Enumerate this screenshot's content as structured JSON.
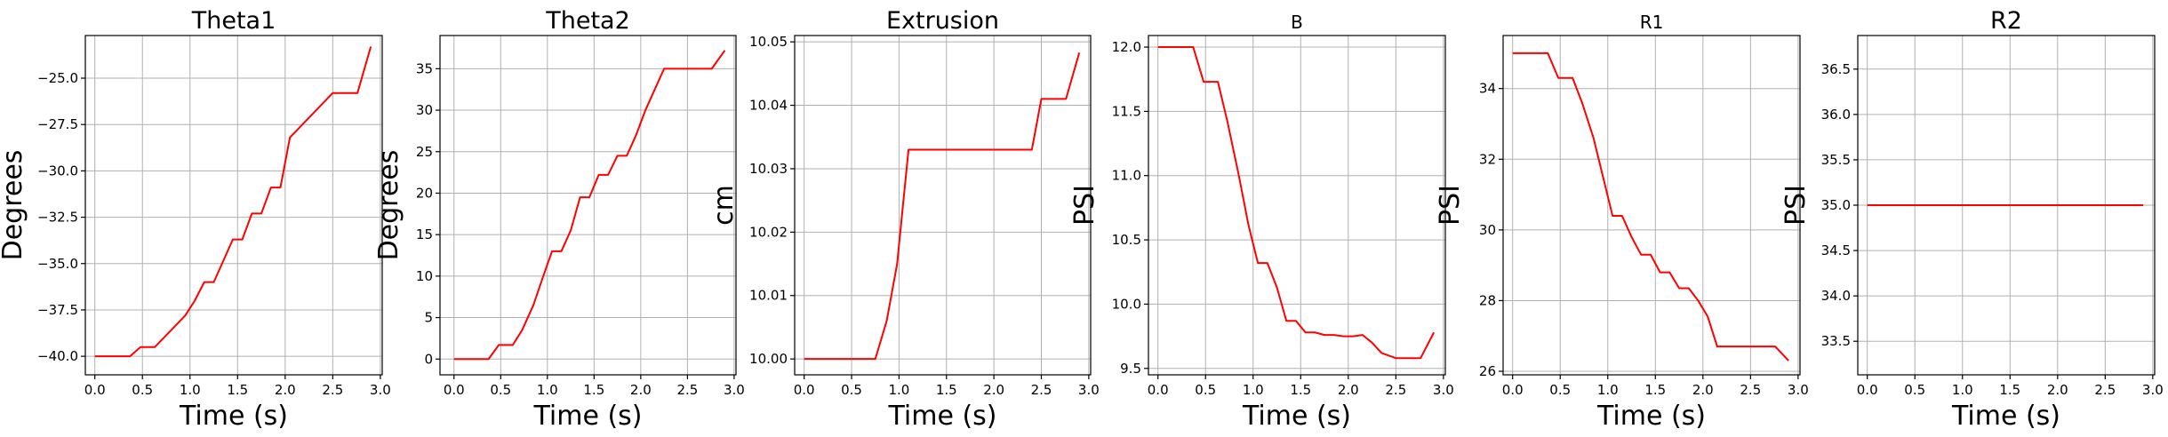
{
  "chart_data": [
    {
      "type": "line",
      "title": "Theta1",
      "xlabel": "Time (s)",
      "ylabel": "Degrees",
      "xlim": [
        -0.1,
        3.02
      ],
      "ylim": [
        -41.0,
        -22.7
      ],
      "xticks": [
        0.0,
        0.5,
        1.0,
        1.5,
        2.0,
        2.5,
        3.0
      ],
      "xtick_labels": [
        "0.0",
        "0.5",
        "1.0",
        "1.5",
        "2.0",
        "2.5",
        "3.0"
      ],
      "yticks": [
        -40.0,
        -37.5,
        -35.0,
        -32.5,
        -30.0,
        -27.5,
        -25.0
      ],
      "ytick_labels": [
        "−40.0",
        "−37.5",
        "−35.0",
        "−32.5",
        "−30.0",
        "−27.5",
        "−25.0"
      ],
      "grid": true,
      "series": [
        {
          "color": "#ff0000",
          "x": [
            0.0,
            0.37,
            0.48,
            0.63,
            0.8,
            0.95,
            1.05,
            1.15,
            1.25,
            1.45,
            1.55,
            1.65,
            1.75,
            1.85,
            1.95,
            2.05,
            2.5,
            2.76,
            2.9
          ],
          "y": [
            -40.0,
            -40.0,
            -39.5,
            -39.5,
            -38.6,
            -37.8,
            -37.0,
            -36.0,
            -36.0,
            -33.7,
            -33.7,
            -32.3,
            -32.3,
            -30.9,
            -30.9,
            -28.2,
            -25.8,
            -25.8,
            -23.3
          ]
        }
      ]
    },
    {
      "type": "line",
      "title": "Theta2",
      "xlabel": "Time (s)",
      "ylabel": "Degrees",
      "xlim": [
        -0.15,
        3.02
      ],
      "ylim": [
        -1.9,
        39.0
      ],
      "xticks": [
        0.0,
        0.5,
        1.0,
        1.5,
        2.0,
        2.5,
        3.0
      ],
      "xtick_labels": [
        "0.0",
        "0.5",
        "1.0",
        "1.5",
        "2.0",
        "2.5",
        "3.0"
      ],
      "yticks": [
        0,
        5,
        10,
        15,
        20,
        25,
        30,
        35
      ],
      "ytick_labels": [
        "0",
        "5",
        "10",
        "15",
        "20",
        "25",
        "30",
        "35"
      ],
      "grid": true,
      "series": [
        {
          "color": "#ff0000",
          "x": [
            0.0,
            0.37,
            0.48,
            0.63,
            0.73,
            0.85,
            0.95,
            1.05,
            1.15,
            1.25,
            1.35,
            1.45,
            1.55,
            1.65,
            1.75,
            1.85,
            1.95,
            2.05,
            2.15,
            2.25,
            2.35,
            2.5,
            2.76,
            2.9
          ],
          "y": [
            0.0,
            0.0,
            1.7,
            1.7,
            3.5,
            6.5,
            9.8,
            13.0,
            13.0,
            15.5,
            19.5,
            19.5,
            22.2,
            22.2,
            24.5,
            24.5,
            27.0,
            30.0,
            32.5,
            35.0,
            35.0,
            35.0,
            35.0,
            37.2
          ]
        }
      ]
    },
    {
      "type": "line",
      "title": "Extrusion",
      "xlabel": "Time (s)",
      "ylabel": "cm",
      "xlim": [
        -0.1,
        3.02
      ],
      "ylim": [
        9.9975,
        10.051
      ],
      "xticks": [
        0.0,
        0.5,
        1.0,
        1.5,
        2.0,
        2.5,
        3.0
      ],
      "xtick_labels": [
        "0.0",
        "0.5",
        "1.0",
        "1.5",
        "2.0",
        "2.5",
        "3.0"
      ],
      "yticks": [
        10.0,
        10.01,
        10.02,
        10.03,
        10.04,
        10.05
      ],
      "ytick_labels": [
        "10.00",
        "10.01",
        "10.02",
        "10.03",
        "10.04",
        "10.05"
      ],
      "grid": true,
      "series": [
        {
          "color": "#ff0000",
          "x": [
            0.0,
            0.75,
            0.87,
            0.98,
            1.1,
            2.4,
            2.5,
            2.76,
            2.9
          ],
          "y": [
            10.0,
            10.0,
            10.006,
            10.015,
            10.033,
            10.033,
            10.041,
            10.041,
            10.0483
          ]
        }
      ]
    },
    {
      "type": "line",
      "title": "B",
      "xlabel": "Time (s)",
      "ylabel": "PSI",
      "xlim": [
        -0.1,
        3.02
      ],
      "ylim": [
        9.45,
        12.09
      ],
      "xticks": [
        0.0,
        0.5,
        1.0,
        1.5,
        2.0,
        2.5,
        3.0
      ],
      "xtick_labels": [
        "0.0",
        "0.5",
        "1.0",
        "1.5",
        "2.0",
        "2.5",
        "3.0"
      ],
      "yticks": [
        9.5,
        10.0,
        10.5,
        11.0,
        11.5,
        12.0
      ],
      "ytick_labels": [
        "9.5",
        "10.0",
        "10.5",
        "11.0",
        "11.5",
        "12.0"
      ],
      "grid": true,
      "series": [
        {
          "color": "#ff0000",
          "x": [
            0.0,
            0.37,
            0.48,
            0.63,
            0.73,
            0.85,
            0.95,
            1.05,
            1.15,
            1.25,
            1.35,
            1.45,
            1.55,
            1.65,
            1.75,
            1.85,
            1.95,
            2.05,
            2.15,
            2.25,
            2.35,
            2.5,
            2.76,
            2.9
          ],
          "y": [
            12.0,
            12.0,
            11.73,
            11.73,
            11.42,
            11.0,
            10.62,
            10.32,
            10.32,
            10.13,
            9.87,
            9.87,
            9.78,
            9.78,
            9.76,
            9.76,
            9.75,
            9.75,
            9.76,
            9.7,
            9.62,
            9.58,
            9.58,
            9.78
          ]
        }
      ]
    },
    {
      "type": "line",
      "title": "R1",
      "xlabel": "Time (s)",
      "ylabel": "PSI",
      "xlim": [
        -0.1,
        3.02
      ],
      "ylim": [
        25.9,
        35.5
      ],
      "xticks": [
        0.0,
        0.5,
        1.0,
        1.5,
        2.0,
        2.5,
        3.0
      ],
      "xtick_labels": [
        "0.0",
        "0.5",
        "1.0",
        "1.5",
        "2.0",
        "2.5",
        "3.0"
      ],
      "yticks": [
        26,
        28,
        30,
        32,
        34
      ],
      "ytick_labels": [
        "26",
        "28",
        "30",
        "32",
        "34"
      ],
      "grid": true,
      "series": [
        {
          "color": "#ff0000",
          "x": [
            0.0,
            0.37,
            0.48,
            0.63,
            0.73,
            0.85,
            0.95,
            1.05,
            1.15,
            1.25,
            1.35,
            1.45,
            1.55,
            1.65,
            1.75,
            1.85,
            1.95,
            2.05,
            2.15,
            2.25,
            2.35,
            2.5,
            2.76,
            2.9
          ],
          "y": [
            35.0,
            35.0,
            34.3,
            34.3,
            33.6,
            32.6,
            31.5,
            30.4,
            30.4,
            29.8,
            29.3,
            29.3,
            28.8,
            28.8,
            28.35,
            28.35,
            28.0,
            27.55,
            26.7,
            26.7,
            26.7,
            26.7,
            26.7,
            26.3
          ]
        }
      ]
    },
    {
      "type": "line",
      "title": "R2",
      "xlabel": "Time (s)",
      "ylabel": "PSI",
      "xlim": [
        -0.1,
        3.02
      ],
      "ylim": [
        33.13,
        36.87
      ],
      "xticks": [
        0.0,
        0.5,
        1.0,
        1.5,
        2.0,
        2.5,
        3.0
      ],
      "xtick_labels": [
        "0.0",
        "0.5",
        "1.0",
        "1.5",
        "2.0",
        "2.5",
        "3.0"
      ],
      "yticks": [
        33.5,
        34.0,
        34.5,
        35.0,
        35.5,
        36.0,
        36.5
      ],
      "ytick_labels": [
        "33.5",
        "34.0",
        "34.5",
        "35.0",
        "35.5",
        "36.0",
        "36.5"
      ],
      "grid": true,
      "series": [
        {
          "color": "#ff0000",
          "x": [
            0.0,
            2.9
          ],
          "y": [
            35.0,
            35.0
          ]
        }
      ]
    }
  ]
}
